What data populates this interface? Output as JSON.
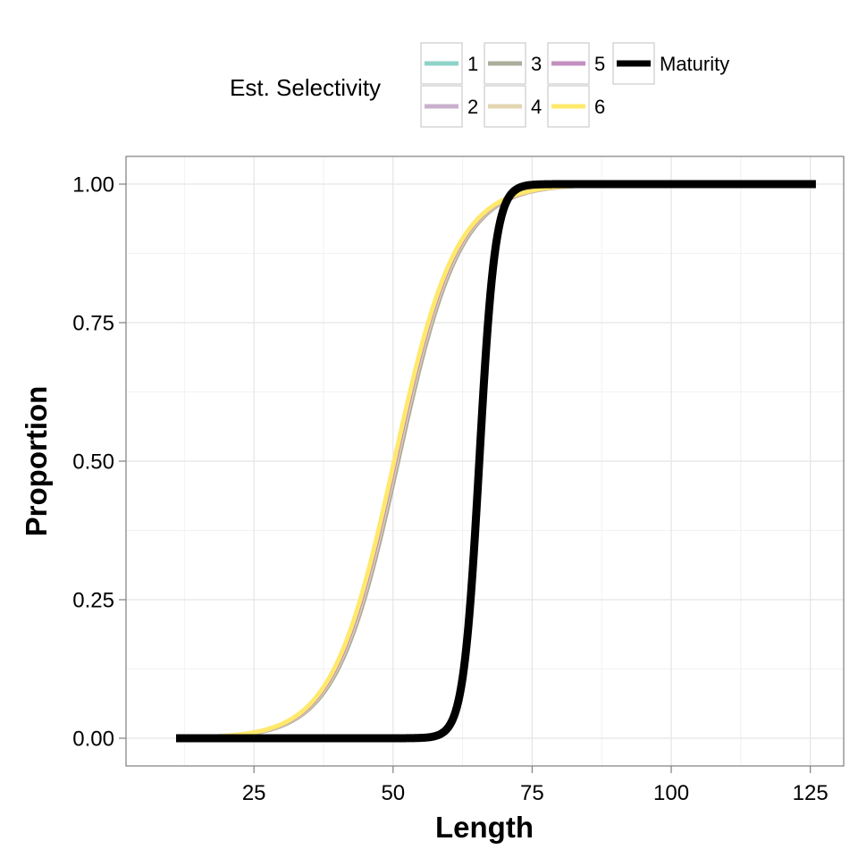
{
  "chart_data": {
    "type": "line",
    "title": "",
    "xlabel": "Length",
    "ylabel": "Proportion",
    "xlim": [
      2,
      131
    ],
    "ylim": [
      -0.05,
      1.05
    ],
    "x_ticks": [
      25,
      50,
      75,
      100,
      125
    ],
    "x_tick_labels": [
      "25",
      "50",
      "75",
      "100",
      "125"
    ],
    "y_ticks": [
      0,
      0.25,
      0.5,
      0.75,
      1
    ],
    "y_tick_labels": [
      "0.00",
      "0.25",
      "0.50",
      "0.75",
      "1.00"
    ],
    "grid": true,
    "legend": {
      "title": "Est. Selectivity",
      "position": "top",
      "columns": [
        [
          "1",
          "2"
        ],
        [
          "3",
          "4"
        ],
        [
          "5",
          "6"
        ],
        [
          "Maturity"
        ]
      ]
    },
    "x_range": [
      11,
      126
    ],
    "series": [
      {
        "name": "1",
        "color": "#8dd3c7",
        "x50": 50.5,
        "slope": 0.18
      },
      {
        "name": "2",
        "color": "#c9b0cc",
        "x50": 50.7,
        "slope": 0.18
      },
      {
        "name": "3",
        "color": "#adad9c",
        "x50": 50.9,
        "slope": 0.18
      },
      {
        "name": "4",
        "color": "#e3d6b0",
        "x50": 50.6,
        "slope": 0.18
      },
      {
        "name": "5",
        "color": "#c38fc0",
        "x50": 50.4,
        "slope": 0.18
      },
      {
        "name": "6",
        "color": "#ffe96b",
        "x50": 50.2,
        "slope": 0.18
      },
      {
        "name": "Maturity",
        "color": "#000000",
        "x50": 65.5,
        "slope": 0.7
      }
    ]
  }
}
